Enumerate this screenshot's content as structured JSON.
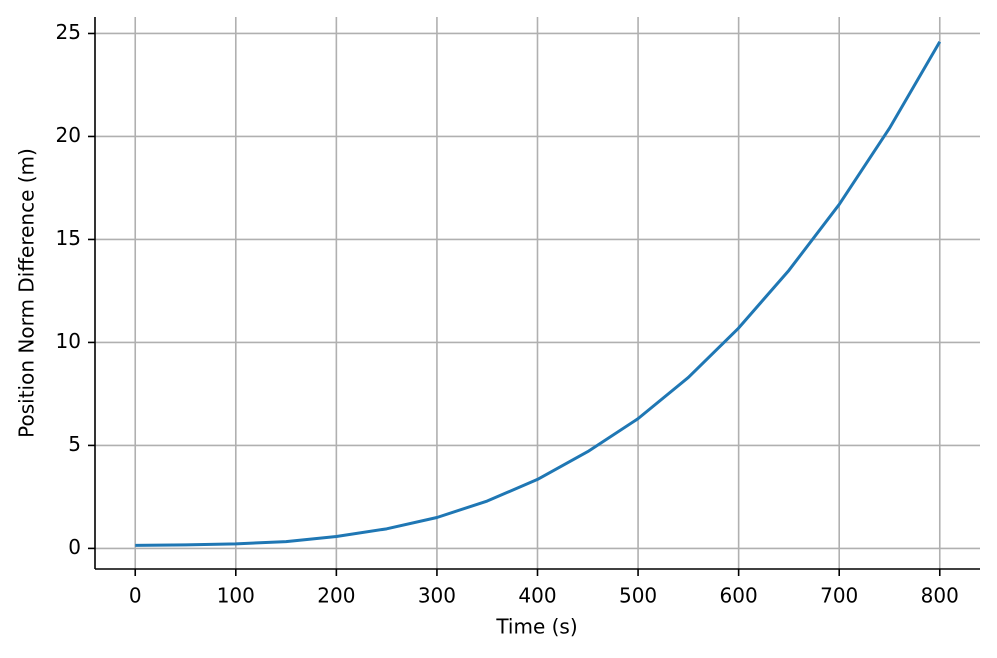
{
  "chart_data": {
    "type": "line",
    "xlabel": "Time (s)",
    "ylabel": "Position Norm Difference (m)",
    "x": [
      0,
      50,
      100,
      150,
      200,
      250,
      300,
      350,
      400,
      450,
      500,
      550,
      600,
      650,
      700,
      750,
      800
    ],
    "values": [
      0.15,
      0.17,
      0.22,
      0.33,
      0.58,
      0.95,
      1.5,
      2.3,
      3.35,
      4.7,
      6.3,
      8.3,
      10.7,
      13.5,
      16.7,
      20.4,
      24.6
    ],
    "color": "#1f77b4",
    "xlim": [
      -40,
      840
    ],
    "xticks": [
      0,
      100,
      200,
      300,
      400,
      500,
      600,
      700,
      800
    ],
    "ylim": [
      -1,
      25.8
    ],
    "yticks": [
      0,
      5,
      10,
      15,
      20,
      25
    ],
    "grid": true
  }
}
